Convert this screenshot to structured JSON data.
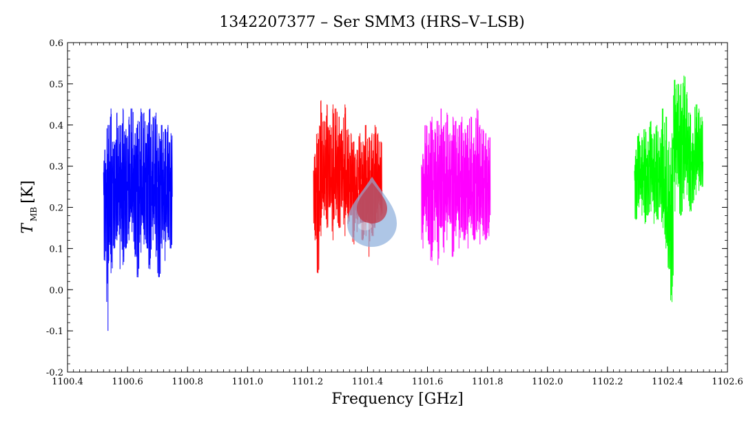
{
  "chart_data": {
    "type": "line",
    "title": "1342207377 – Ser SMM3 (HRS–V–LSB)",
    "xlabel": "Frequency [GHz]",
    "ylabel_main": "T",
    "ylabel_sub": "MB",
    "ylabel_unit": "[K]",
    "xlim": [
      1100.4,
      1102.6
    ],
    "ylim": [
      -0.2,
      0.6
    ],
    "x_ticks": [
      "1100.4",
      "1100.6",
      "1100.8",
      "1101.0",
      "1101.2",
      "1101.4",
      "1101.6",
      "1101.8",
      "1102.0",
      "1102.2",
      "1102.4",
      "1102.6"
    ],
    "y_ticks": [
      "0.6",
      "0.5",
      "0.4",
      "0.3",
      "0.2",
      "0.1",
      "0.0",
      "-0.1",
      "-0.2"
    ],
    "grid": false,
    "series": [
      {
        "color": "#0000ff",
        "x": [
          1100.525,
          1100.535,
          1100.545,
          1100.555,
          1100.565,
          1100.575,
          1100.585,
          1100.595,
          1100.605,
          1100.615,
          1100.625,
          1100.635,
          1100.645,
          1100.655,
          1100.665,
          1100.675,
          1100.685,
          1100.695,
          1100.705,
          1100.715,
          1100.725,
          1100.735,
          1100.745
        ],
        "y": [
          0.23,
          0.26,
          0.21,
          0.27,
          0.24,
          0.28,
          0.22,
          0.26,
          0.25,
          0.23,
          0.27,
          0.24,
          0.26,
          0.22,
          0.28,
          0.25,
          0.23,
          0.27,
          0.24,
          0.26,
          0.22,
          0.25,
          0.24
        ],
        "high": [
          0.34,
          0.4,
          0.44,
          0.36,
          0.43,
          0.4,
          0.44,
          0.39,
          0.42,
          0.44,
          0.38,
          0.41,
          0.44,
          0.43,
          0.4,
          0.44,
          0.42,
          0.43,
          0.38,
          0.4,
          0.39,
          0.4,
          0.38
        ],
        "low": [
          0.07,
          -0.1,
          0.04,
          0.1,
          0.12,
          0.05,
          0.06,
          0.1,
          0.12,
          0.14,
          0.08,
          0.03,
          0.09,
          0.11,
          0.1,
          0.05,
          0.12,
          0.08,
          0.03,
          0.1,
          0.07,
          0.12,
          0.1
        ]
      },
      {
        "color": "#ff0000",
        "x": [
          1101.225,
          1101.235,
          1101.245,
          1101.255,
          1101.265,
          1101.275,
          1101.285,
          1101.295,
          1101.305,
          1101.315,
          1101.325,
          1101.335,
          1101.345,
          1101.355,
          1101.365,
          1101.375,
          1101.385,
          1101.395,
          1101.405,
          1101.415,
          1101.425,
          1101.435,
          1101.445
        ],
        "y": [
          0.26,
          0.24,
          0.29,
          0.25,
          0.3,
          0.27,
          0.23,
          0.28,
          0.26,
          0.29,
          0.25,
          0.27,
          0.24,
          0.26,
          0.22,
          0.27,
          0.25,
          0.23,
          0.26,
          0.24,
          0.25,
          0.26,
          0.24
        ],
        "high": [
          0.33,
          0.38,
          0.46,
          0.41,
          0.45,
          0.4,
          0.45,
          0.44,
          0.42,
          0.39,
          0.45,
          0.39,
          0.38,
          0.36,
          0.34,
          0.38,
          0.36,
          0.4,
          0.37,
          0.38,
          0.4,
          0.38,
          0.36
        ],
        "low": [
          0.12,
          0.04,
          0.13,
          0.18,
          0.15,
          0.2,
          0.12,
          0.18,
          0.15,
          0.2,
          0.13,
          0.16,
          0.18,
          0.11,
          0.14,
          0.16,
          0.12,
          0.13,
          0.08,
          0.13,
          0.15,
          0.17,
          0.18
        ]
      },
      {
        "color": "#ff00ff",
        "x": [
          1101.585,
          1101.595,
          1101.605,
          1101.615,
          1101.625,
          1101.635,
          1101.645,
          1101.655,
          1101.665,
          1101.675,
          1101.685,
          1101.695,
          1101.705,
          1101.715,
          1101.725,
          1101.735,
          1101.745,
          1101.755,
          1101.765,
          1101.775,
          1101.785,
          1101.795,
          1101.805
        ],
        "y": [
          0.25,
          0.27,
          0.24,
          0.26,
          0.28,
          0.25,
          0.23,
          0.27,
          0.26,
          0.24,
          0.28,
          0.25,
          0.27,
          0.24,
          0.26,
          0.25,
          0.23,
          0.27,
          0.26,
          0.24,
          0.27,
          0.25,
          0.26
        ],
        "high": [
          0.33,
          0.4,
          0.38,
          0.42,
          0.39,
          0.41,
          0.44,
          0.4,
          0.43,
          0.38,
          0.42,
          0.41,
          0.4,
          0.42,
          0.39,
          0.4,
          0.42,
          0.37,
          0.44,
          0.4,
          0.39,
          0.38,
          0.37
        ],
        "low": [
          0.1,
          0.14,
          0.11,
          0.07,
          0.12,
          0.06,
          0.15,
          0.09,
          0.12,
          0.16,
          0.08,
          0.13,
          0.1,
          0.14,
          0.12,
          0.1,
          0.15,
          0.12,
          0.14,
          0.11,
          0.13,
          0.12,
          0.13
        ]
      },
      {
        "color": "#00ff00",
        "x": [
          1102.295,
          1102.305,
          1102.315,
          1102.325,
          1102.335,
          1102.345,
          1102.355,
          1102.365,
          1102.375,
          1102.385,
          1102.395,
          1102.405,
          1102.415,
          1102.425,
          1102.435,
          1102.445,
          1102.455,
          1102.465,
          1102.475,
          1102.485,
          1102.495,
          1102.505,
          1102.515
        ],
        "y": [
          0.27,
          0.29,
          0.28,
          0.3,
          0.26,
          0.31,
          0.28,
          0.29,
          0.26,
          0.23,
          0.18,
          0.12,
          0.2,
          0.4,
          0.38,
          0.33,
          0.36,
          0.34,
          0.31,
          0.29,
          0.33,
          0.34,
          0.31
        ],
        "high": [
          0.34,
          0.38,
          0.37,
          0.39,
          0.36,
          0.41,
          0.38,
          0.4,
          0.37,
          0.44,
          0.42,
          0.36,
          0.38,
          0.51,
          0.5,
          0.5,
          0.52,
          0.48,
          0.43,
          0.38,
          0.45,
          0.44,
          0.42
        ],
        "low": [
          0.17,
          0.2,
          0.18,
          0.16,
          0.18,
          0.19,
          0.16,
          0.17,
          0.2,
          0.15,
          0.1,
          0.05,
          -0.03,
          0.19,
          0.25,
          0.18,
          0.22,
          0.23,
          0.19,
          0.21,
          0.23,
          0.24,
          0.25
        ]
      }
    ]
  }
}
